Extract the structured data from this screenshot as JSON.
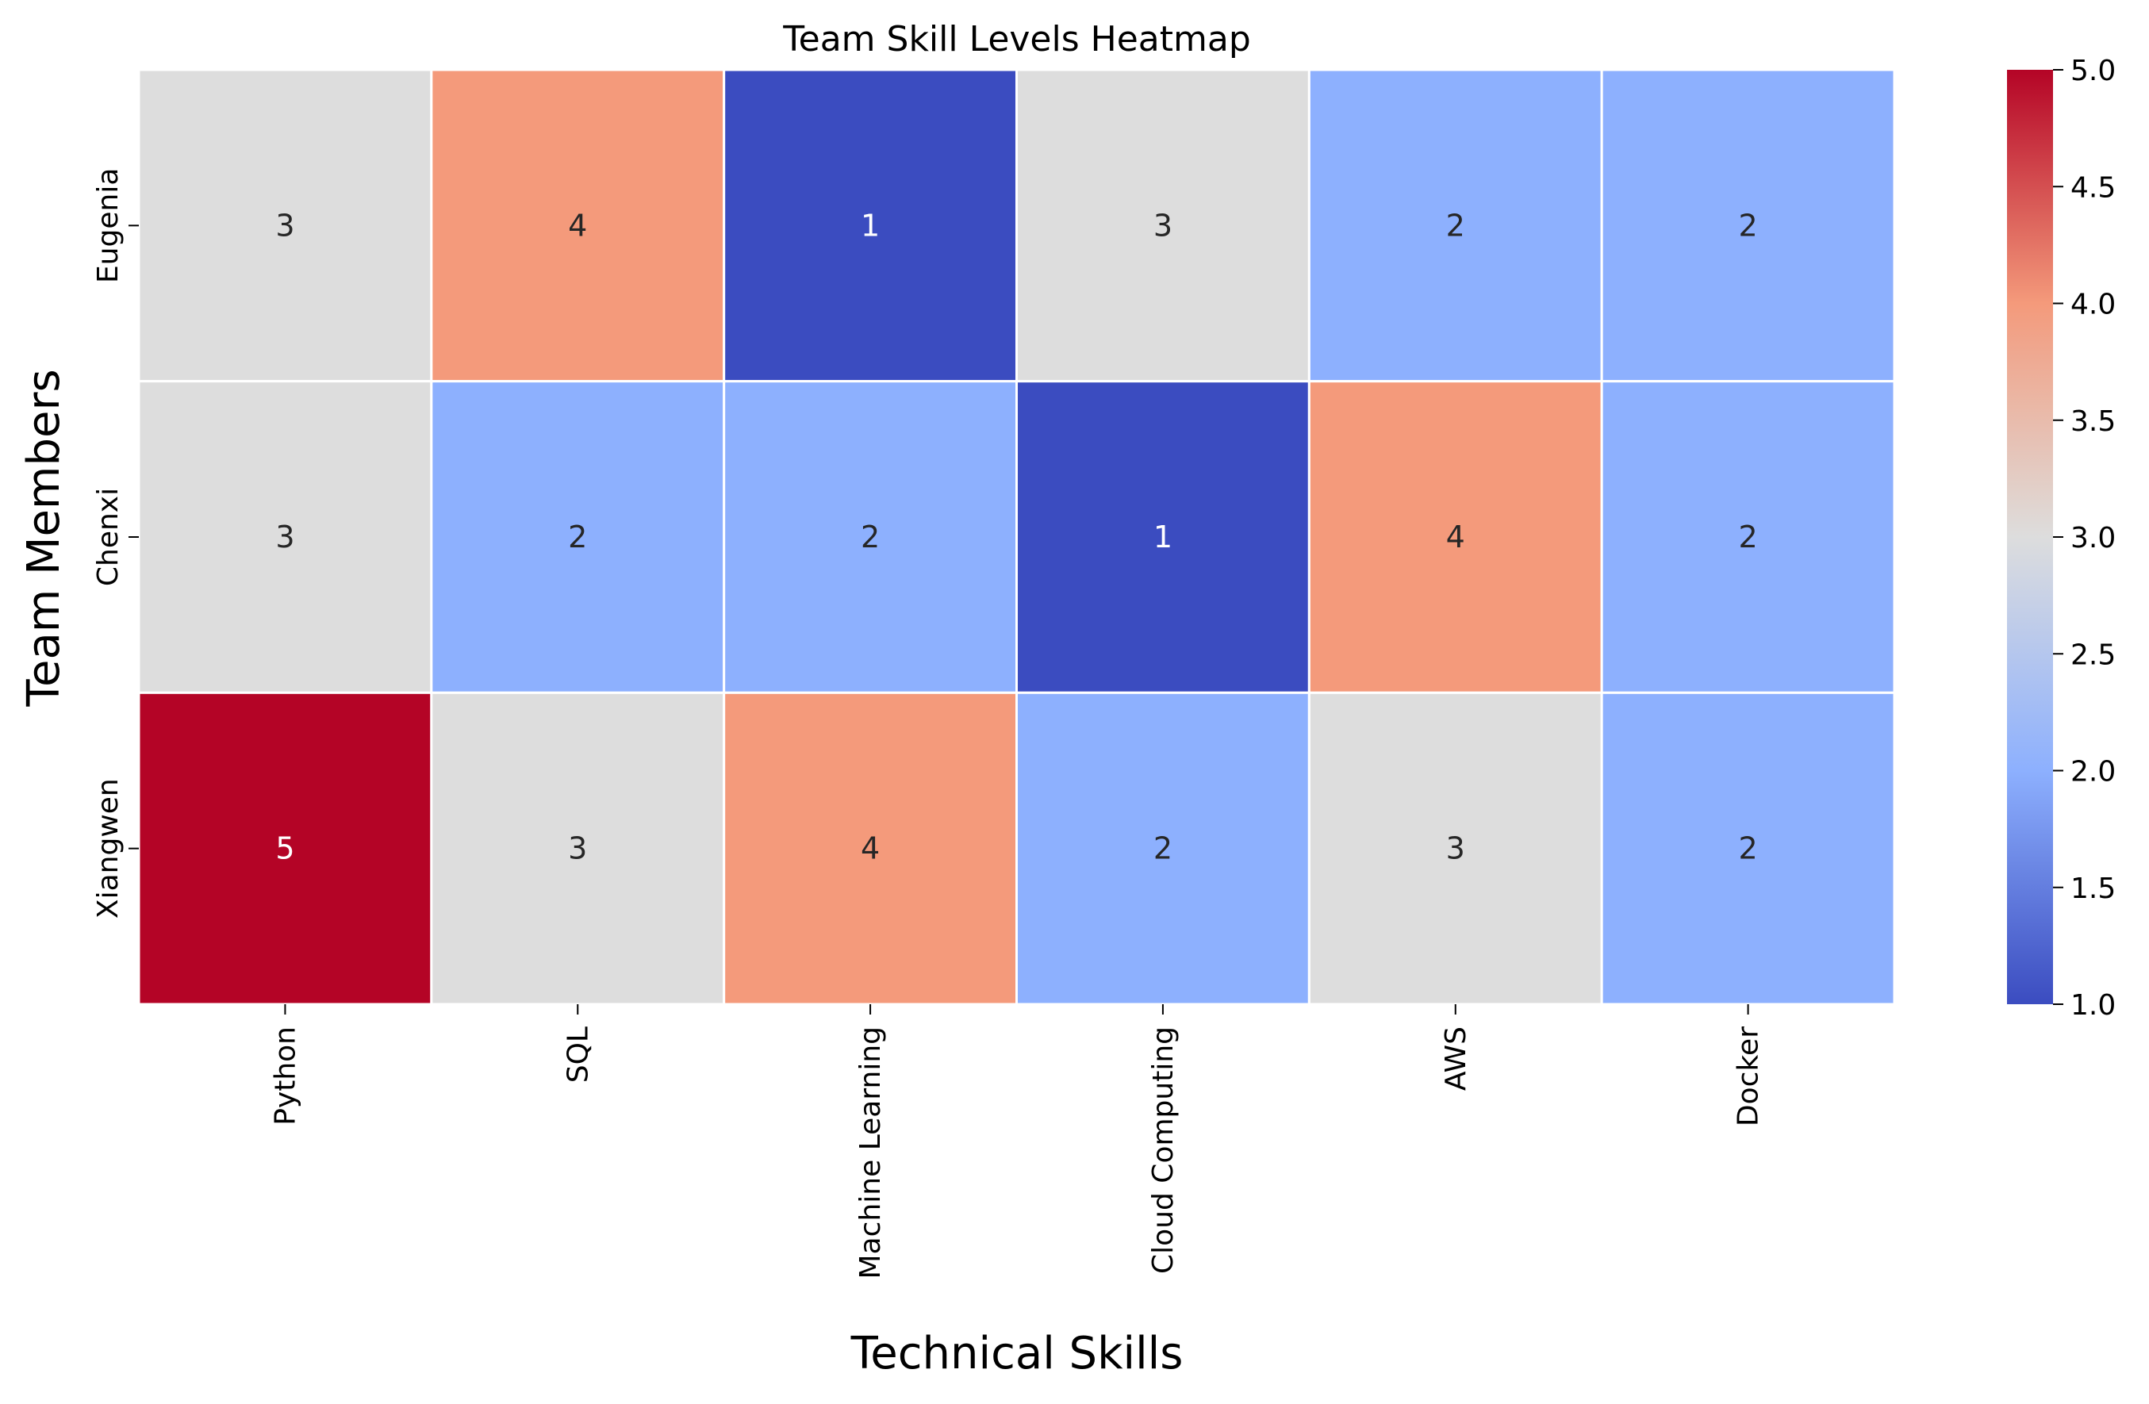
{
  "chart_data": {
    "type": "heatmap",
    "title": "Team Skill Levels Heatmap",
    "xlabel": "Technical Skills",
    "ylabel": "Team Members",
    "x_categories": [
      "Python",
      "SQL",
      "Machine Learning",
      "Cloud Computing",
      "AWS",
      "Docker"
    ],
    "y_categories": [
      "Eugenia",
      "Chenxi",
      "Xiangwen"
    ],
    "values": [
      [
        3,
        4,
        1,
        3,
        2,
        2
      ],
      [
        3,
        2,
        2,
        1,
        4,
        2
      ],
      [
        5,
        3,
        4,
        2,
        3,
        2
      ]
    ],
    "annotations": true,
    "colormap": "coolwarm",
    "colorbar": {
      "min": 1.0,
      "max": 5.0,
      "ticks": [
        "1.0",
        "1.5",
        "2.0",
        "2.5",
        "3.0",
        "3.5",
        "4.0",
        "4.5",
        "5.0"
      ]
    },
    "grid": false,
    "cell_border_color": "#ffffff",
    "colors": {
      "1": "#3b4cc0",
      "2": "#8db0fe",
      "3": "#dddddd",
      "4": "#f49a7b",
      "5": "#b40426"
    }
  }
}
